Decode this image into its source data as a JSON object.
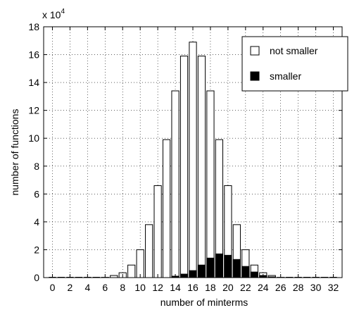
{
  "chart_data": {
    "type": "bar",
    "xlabel": "number of minterms",
    "ylabel": "number of functions",
    "multiplier_base": "x 10",
    "multiplier_exponent": "4",
    "x_ticks": [
      "0",
      "2",
      "4",
      "6",
      "8",
      "10",
      "12",
      "14",
      "16",
      "18",
      "20",
      "22",
      "24",
      "26",
      "28",
      "30",
      "32"
    ],
    "y_ticks": [
      "0",
      "2",
      "4",
      "6",
      "8",
      "10",
      "12",
      "14",
      "16",
      "18"
    ],
    "xlim": [
      -1,
      33
    ],
    "ylim": [
      0,
      18
    ],
    "grid": true,
    "legend_position": "top-right",
    "categories": [
      0,
      1,
      2,
      3,
      4,
      5,
      6,
      7,
      8,
      9,
      10,
      11,
      12,
      13,
      14,
      15,
      16,
      17,
      18,
      19,
      20,
      21,
      22,
      23,
      24,
      25,
      26,
      27,
      28,
      29,
      30,
      31,
      32
    ],
    "series": [
      {
        "name": "not smaller",
        "color": "#ffffff",
        "values": [
          0,
          0,
          0,
          0,
          0,
          0,
          0.02,
          0.15,
          0.35,
          0.9,
          2.0,
          3.8,
          6.6,
          9.9,
          13.4,
          15.9,
          16.9,
          15.9,
          13.4,
          9.9,
          6.6,
          3.8,
          2.0,
          0.9,
          0.35,
          0.15,
          0.02,
          0,
          0,
          0,
          0,
          0,
          0
        ]
      },
      {
        "name": "smaller",
        "color": "#000000",
        "values": [
          0,
          0,
          0,
          0,
          0,
          0,
          0,
          0,
          0,
          0,
          0,
          0,
          0,
          0,
          0.1,
          0.25,
          0.5,
          0.9,
          1.4,
          1.7,
          1.6,
          1.3,
          0.8,
          0.4,
          0.15,
          0.05,
          0,
          0,
          0,
          0,
          0,
          0,
          0
        ]
      }
    ]
  }
}
